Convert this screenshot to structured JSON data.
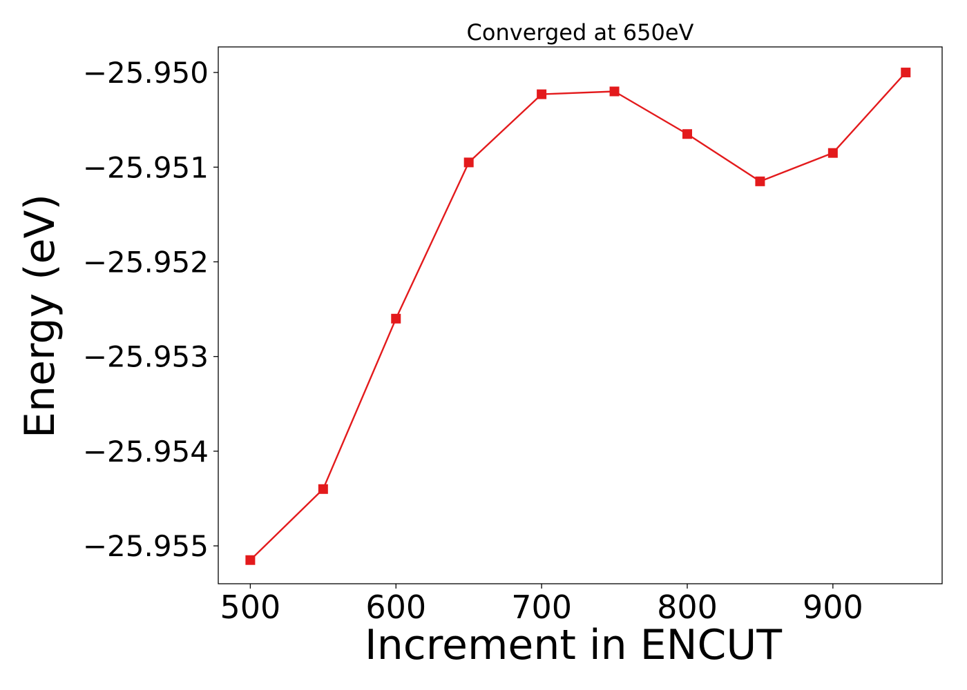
{
  "chart_data": {
    "type": "line",
    "title": "Converged at 650eV",
    "xlabel": "Increment in ENCUT",
    "ylabel": "Energy (eV)",
    "x": [
      500,
      550,
      600,
      650,
      700,
      750,
      800,
      850,
      900,
      950
    ],
    "series": [
      {
        "values": [
          -25.95515,
          -25.9544,
          -25.9526,
          -25.95095,
          -25.95023,
          -25.9502,
          -25.95065,
          -25.95115,
          -25.95085,
          -25.95
        ]
      }
    ],
    "xlim": [
      478,
      975
    ],
    "ylim": [
      -25.9554,
      -25.94973
    ],
    "xticks": [
      500,
      600,
      700,
      800,
      900
    ],
    "xtick_labels": [
      "500",
      "600",
      "700",
      "800",
      "900"
    ],
    "yticks": [
      -25.95,
      -25.951,
      -25.952,
      -25.953,
      -25.954,
      -25.955
    ],
    "ytick_labels": [
      "−25.950",
      "−25.951",
      "−25.952",
      "−25.953",
      "−25.954",
      "−25.955"
    ],
    "marker": "square",
    "line_color": "#e31a1c",
    "grid": false,
    "legend": "none"
  }
}
